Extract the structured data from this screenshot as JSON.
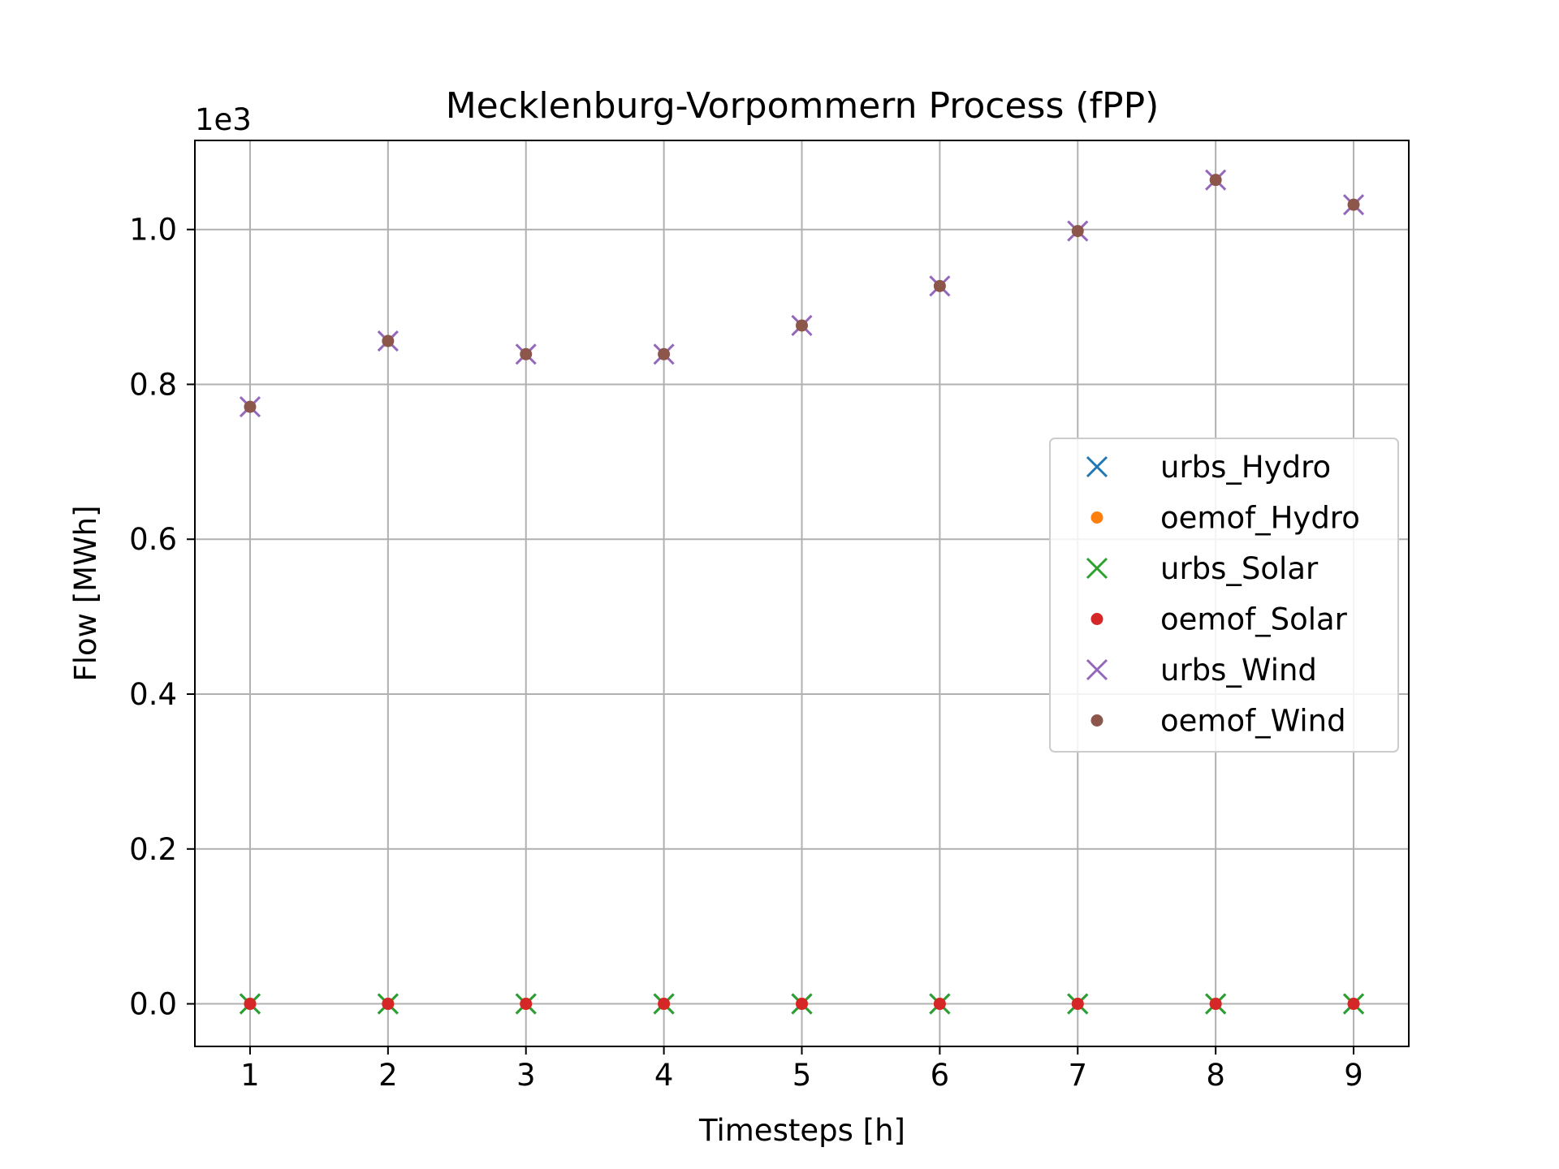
{
  "chart_data": {
    "type": "scatter",
    "title": "Mecklenburg-Vorpommern Process (fPP)",
    "xlabel": "Timesteps [h]",
    "ylabel": "Flow [MWh]",
    "y_offset_label": "1e3",
    "x": [
      1,
      2,
      3,
      4,
      5,
      6,
      7,
      8,
      9
    ],
    "xlim": [
      0.6,
      9.4
    ],
    "ylim": [
      -0.055,
      1.115
    ],
    "x_ticks": [
      1,
      2,
      3,
      4,
      5,
      6,
      7,
      8,
      9
    ],
    "x_tick_labels": [
      "1",
      "2",
      "3",
      "4",
      "5",
      "6",
      "7",
      "8",
      "9"
    ],
    "y_ticks": [
      0.0,
      0.2,
      0.4,
      0.6,
      0.8,
      1.0
    ],
    "y_tick_labels": [
      "0.0",
      "0.2",
      "0.4",
      "0.6",
      "0.8",
      "1.0"
    ],
    "grid": true,
    "legend_position": "center-right",
    "series": [
      {
        "name": "urbs_Hydro",
        "marker": "x",
        "color": "#1f77b4",
        "values": [
          0,
          0,
          0,
          0,
          0,
          0,
          0,
          0,
          0
        ]
      },
      {
        "name": "oemof_Hydro",
        "marker": "dot",
        "color": "#ff7f0e",
        "values": [
          0,
          0,
          0,
          0,
          0,
          0,
          0,
          0,
          0
        ]
      },
      {
        "name": "urbs_Solar",
        "marker": "x",
        "color": "#2ca02c",
        "values": [
          0,
          0,
          0,
          0,
          0,
          0,
          0,
          0,
          0
        ]
      },
      {
        "name": "oemof_Solar",
        "marker": "dot",
        "color": "#d62728",
        "values": [
          0,
          0,
          0,
          0,
          0,
          0,
          0,
          0,
          0
        ]
      },
      {
        "name": "urbs_Wind",
        "marker": "x",
        "color": "#9467bd",
        "values": [
          0.771,
          0.856,
          0.839,
          0.839,
          0.876,
          0.927,
          0.998,
          1.064,
          1.032
        ]
      },
      {
        "name": "oemof_Wind",
        "marker": "dot",
        "color": "#8c564b",
        "values": [
          0.771,
          0.856,
          0.839,
          0.839,
          0.876,
          0.927,
          0.998,
          1.064,
          1.032
        ]
      }
    ]
  }
}
